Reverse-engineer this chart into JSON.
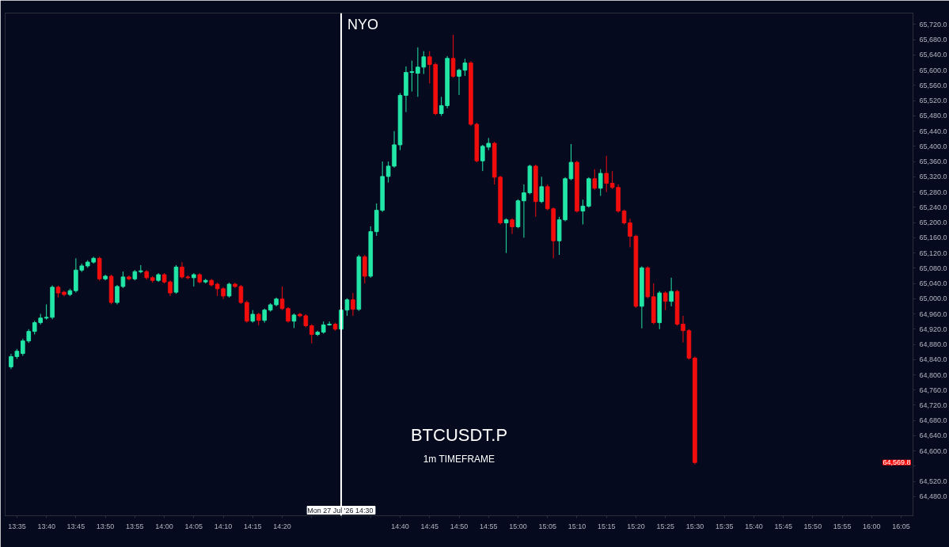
{
  "chart_data": {
    "type": "candlestick",
    "title": "BTCUSDT.P",
    "subtitle": "1m TIMEFRAME",
    "x": [
      "2026-07-27T13:34",
      "2026-07-27T13:35",
      "2026-07-27T13:36",
      "2026-07-27T13:37",
      "2026-07-27T13:38",
      "2026-07-27T13:39",
      "2026-07-27T13:40",
      "2026-07-27T13:41",
      "2026-07-27T13:42",
      "2026-07-27T13:43",
      "2026-07-27T13:44",
      "2026-07-27T13:45",
      "2026-07-27T13:46",
      "2026-07-27T13:47",
      "2026-07-27T13:48",
      "2026-07-27T13:49",
      "2026-07-27T13:50",
      "2026-07-27T13:51",
      "2026-07-27T13:52",
      "2026-07-27T13:53",
      "2026-07-27T13:54",
      "2026-07-27T13:55",
      "2026-07-27T13:56",
      "2026-07-27T13:57",
      "2026-07-27T13:58",
      "2026-07-27T13:59",
      "2026-07-27T14:00",
      "2026-07-27T14:01",
      "2026-07-27T14:02",
      "2026-07-27T14:03",
      "2026-07-27T14:04",
      "2026-07-27T14:05",
      "2026-07-27T14:06",
      "2026-07-27T14:07",
      "2026-07-27T14:08",
      "2026-07-27T14:09",
      "2026-07-27T14:10",
      "2026-07-27T14:11",
      "2026-07-27T14:12",
      "2026-07-27T14:13",
      "2026-07-27T14:14",
      "2026-07-27T14:15",
      "2026-07-27T14:16",
      "2026-07-27T14:17",
      "2026-07-27T14:18",
      "2026-07-27T14:19",
      "2026-07-27T14:20",
      "2026-07-27T14:21",
      "2026-07-27T14:22",
      "2026-07-27T14:23",
      "2026-07-27T14:24",
      "2026-07-27T14:25",
      "2026-07-27T14:26",
      "2026-07-27T14:27",
      "2026-07-27T14:28",
      "2026-07-27T14:29",
      "2026-07-27T14:30",
      "2026-07-27T14:31",
      "2026-07-27T14:32",
      "2026-07-27T14:33",
      "2026-07-27T14:34",
      "2026-07-27T14:35",
      "2026-07-27T14:36",
      "2026-07-27T14:37",
      "2026-07-27T14:38",
      "2026-07-27T14:39",
      "2026-07-27T14:40",
      "2026-07-27T14:41",
      "2026-07-27T14:42",
      "2026-07-27T14:43",
      "2026-07-27T14:44",
      "2026-07-27T14:45",
      "2026-07-27T14:46",
      "2026-07-27T14:47",
      "2026-07-27T14:48",
      "2026-07-27T14:49",
      "2026-07-27T14:50",
      "2026-07-27T14:51",
      "2026-07-27T14:52",
      "2026-07-27T14:53",
      "2026-07-27T14:54",
      "2026-07-27T14:55",
      "2026-07-27T14:56",
      "2026-07-27T14:57",
      "2026-07-27T14:58",
      "2026-07-27T14:59",
      "2026-07-27T15:00",
      "2026-07-27T15:01",
      "2026-07-27T15:02",
      "2026-07-27T15:03",
      "2026-07-27T15:04",
      "2026-07-27T15:05",
      "2026-07-27T15:06",
      "2026-07-27T15:07",
      "2026-07-27T15:08",
      "2026-07-27T15:09",
      "2026-07-27T15:10",
      "2026-07-27T15:11",
      "2026-07-27T15:12",
      "2026-07-27T15:13",
      "2026-07-27T15:14",
      "2026-07-27T15:15",
      "2026-07-27T15:16",
      "2026-07-27T15:17",
      "2026-07-27T15:18",
      "2026-07-27T15:19",
      "2026-07-27T15:20",
      "2026-07-27T15:21",
      "2026-07-27T15:22",
      "2026-07-27T15:23",
      "2026-07-27T15:24",
      "2026-07-27T15:25",
      "2026-07-27T15:26",
      "2026-07-27T15:27",
      "2026-07-27T15:28",
      "2026-07-27T15:29",
      "2026-07-27T15:30"
    ],
    "ohlc": [
      [
        64821,
        64855,
        64815,
        64848
      ],
      [
        64848,
        64868,
        64842,
        64862
      ],
      [
        64856,
        64895,
        64850,
        64889
      ],
      [
        64889,
        64920,
        64884,
        64914
      ],
      [
        64914,
        64942,
        64906,
        64937
      ],
      [
        64937,
        64960,
        64932,
        64949
      ],
      [
        64949,
        64985,
        64945,
        64951
      ],
      [
        64951,
        65035,
        64946,
        65030
      ],
      [
        65030,
        65034,
        65003,
        65015
      ],
      [
        65017,
        65021,
        65006,
        65011
      ],
      [
        65011,
        65026,
        65007,
        65021
      ],
      [
        65021,
        65106,
        65016,
        65075
      ],
      [
        65075,
        65092,
        65070,
        65086
      ],
      [
        65086,
        65101,
        65081,
        65096
      ],
      [
        65096,
        65110,
        65092,
        65106
      ],
      [
        65106,
        65110,
        65047,
        65052
      ],
      [
        65052,
        65063,
        65048,
        65059
      ],
      [
        65059,
        65063,
        64985,
        64990
      ],
      [
        64990,
        65036,
        64985,
        65032
      ],
      [
        65032,
        65071,
        65028,
        65057
      ],
      [
        65057,
        65061,
        65048,
        65052
      ],
      [
        65052,
        65075,
        65048,
        65071
      ],
      [
        65071,
        65088,
        65067,
        65073
      ],
      [
        65071,
        65075,
        65050,
        65055
      ],
      [
        65055,
        65059,
        65042,
        65048
      ],
      [
        65048,
        65067,
        65044,
        65063
      ],
      [
        65063,
        65067,
        65040,
        65044
      ],
      [
        65044,
        65048,
        65007,
        65015
      ],
      [
        65017,
        65088,
        65013,
        65083
      ],
      [
        65083,
        65096,
        65053,
        65057
      ],
      [
        65057,
        65061,
        65051,
        65055
      ],
      [
        65055,
        65067,
        65032,
        65063
      ],
      [
        65063,
        65067,
        65040,
        65044
      ],
      [
        65044,
        65052,
        65040,
        65048
      ],
      [
        65048,
        65052,
        65032,
        65036
      ],
      [
        65038,
        65042,
        65007,
        65026
      ],
      [
        65026,
        65030,
        64999,
        65007
      ],
      [
        65007,
        65042,
        65003,
        65038
      ],
      [
        65038,
        65042,
        65028,
        65032
      ],
      [
        65032,
        65036,
        64986,
        64990
      ],
      [
        64990,
        64995,
        64937,
        64941
      ],
      [
        64941,
        64970,
        64937,
        64959
      ],
      [
        64959,
        64963,
        64930,
        64943
      ],
      [
        64943,
        64974,
        64937,
        64970
      ],
      [
        64970,
        64988,
        64966,
        64984
      ],
      [
        64984,
        65003,
        64980,
        64999
      ],
      [
        64999,
        65032,
        64970,
        64974
      ],
      [
        64974,
        64978,
        64937,
        64941
      ],
      [
        64941,
        64961,
        64923,
        64957
      ],
      [
        64959,
        64963,
        64951,
        64955
      ],
      [
        64955,
        64959,
        64925,
        64929
      ],
      [
        64929,
        64933,
        64883,
        64906
      ],
      [
        64906,
        64916,
        64902,
        64912
      ],
      [
        64912,
        64940,
        64908,
        64931
      ],
      [
        64931,
        64940,
        64929,
        64933
      ],
      [
        64933,
        64937,
        64916,
        64920
      ],
      [
        64920,
        64974,
        64916,
        64970
      ],
      [
        64970,
        65001,
        64955,
        64997
      ],
      [
        64997,
        65015,
        64955,
        64972
      ],
      [
        64972,
        65115,
        64968,
        65110
      ],
      [
        65110,
        65115,
        65040,
        65059
      ],
      [
        65059,
        65190,
        65055,
        65176
      ],
      [
        65176,
        65250,
        65165,
        65232
      ],
      [
        65232,
        65360,
        65228,
        65321
      ],
      [
        65321,
        65360,
        65305,
        65348
      ],
      [
        65348,
        65440,
        65344,
        65404
      ],
      [
        65404,
        65540,
        65390,
        65534
      ],
      [
        65534,
        65610,
        65490,
        65594
      ],
      [
        65594,
        65625,
        65544,
        65596
      ],
      [
        65592,
        65660,
        65530,
        65608
      ],
      [
        65608,
        65650,
        65590,
        65635
      ],
      [
        65635,
        65650,
        65565,
        65615
      ],
      [
        65615,
        65620,
        65482,
        65486
      ],
      [
        65486,
        65530,
        65480,
        65507
      ],
      [
        65507,
        65637,
        65500,
        65631
      ],
      [
        65631,
        65693,
        65580,
        65584
      ],
      [
        65584,
        65604,
        65535,
        65600
      ],
      [
        65600,
        65630,
        65585,
        65619
      ],
      [
        65619,
        65624,
        65454,
        65458
      ],
      [
        65458,
        65462,
        65358,
        65362
      ],
      [
        65362,
        65404,
        65335,
        65400
      ],
      [
        65398,
        65422,
        65390,
        65408
      ],
      [
        65408,
        65412,
        65300,
        65319
      ],
      [
        65319,
        65323,
        65195,
        65199
      ],
      [
        65199,
        65211,
        65120,
        65207
      ],
      [
        65207,
        65211,
        65170,
        65189
      ],
      [
        65189,
        65261,
        65185,
        65257
      ],
      [
        65257,
        65300,
        65160,
        65278
      ],
      [
        65278,
        65352,
        65274,
        65348
      ],
      [
        65348,
        65352,
        65215,
        65255
      ],
      [
        65255,
        65320,
        65251,
        65294
      ],
      [
        65294,
        65300,
        65232,
        65236
      ],
      [
        65236,
        65240,
        65106,
        65152
      ],
      [
        65152,
        65215,
        65115,
        65207
      ],
      [
        65207,
        65319,
        65203,
        65315
      ],
      [
        65315,
        65406,
        65311,
        65358
      ],
      [
        65358,
        65362,
        65226,
        65230
      ],
      [
        65230,
        65260,
        65195,
        65243
      ],
      [
        65243,
        65319,
        65239,
        65315
      ],
      [
        65315,
        65340,
        65286,
        65290
      ],
      [
        65290,
        65340,
        65270,
        65329
      ],
      [
        65329,
        65375,
        65280,
        65303
      ],
      [
        65303,
        65335,
        65288,
        65292
      ],
      [
        65292,
        65300,
        65226,
        65230
      ],
      [
        65230,
        65234,
        65195,
        65199
      ],
      [
        65199,
        65210,
        65135,
        65164
      ],
      [
        65164,
        65168,
        64976,
        64980
      ],
      [
        64980,
        65085,
        64922,
        65081
      ],
      [
        65081,
        65085,
        65001,
        65005
      ],
      [
        65005,
        65040,
        64933,
        64937
      ],
      [
        64937,
        65020,
        64920,
        65015
      ],
      [
        65015,
        65019,
        64970,
        64993
      ],
      [
        64993,
        65055,
        64980,
        65019
      ],
      [
        65019,
        65023,
        64929,
        64933
      ],
      [
        64933,
        64955,
        64885,
        64916
      ],
      [
        64916,
        64920,
        64840,
        64844
      ],
      [
        64844,
        64848,
        64565,
        64569.8
      ]
    ],
    "xlim": [
      "2026-07-27T13:33",
      "2026-07-27T16:07"
    ],
    "xticks": [
      {
        "value": "2026-07-27T13:35",
        "label": "13:35"
      },
      {
        "value": "2026-07-27T13:40",
        "label": "13:40"
      },
      {
        "value": "2026-07-27T13:45",
        "label": "13:45"
      },
      {
        "value": "2026-07-27T13:50",
        "label": "13:50"
      },
      {
        "value": "2026-07-27T13:55",
        "label": "13:55"
      },
      {
        "value": "2026-07-27T14:00",
        "label": "14:00"
      },
      {
        "value": "2026-07-27T14:05",
        "label": "14:05"
      },
      {
        "value": "2026-07-27T14:10",
        "label": "14:10"
      },
      {
        "value": "2026-07-27T14:15",
        "label": "14:15"
      },
      {
        "value": "2026-07-27T14:20",
        "label": "14:20"
      },
      {
        "value": "2026-07-27T14:25",
        "label": null
      },
      {
        "value": "2026-07-27T14:30",
        "label": null
      },
      {
        "value": "2026-07-27T14:35",
        "label": null
      },
      {
        "value": "2026-07-27T14:40",
        "label": "14:40"
      },
      {
        "value": "2026-07-27T14:45",
        "label": "14:45"
      },
      {
        "value": "2026-07-27T14:50",
        "label": "14:50"
      },
      {
        "value": "2026-07-27T14:55",
        "label": "14:55"
      },
      {
        "value": "2026-07-27T15:00",
        "label": "15:00"
      },
      {
        "value": "2026-07-27T15:05",
        "label": "15:05"
      },
      {
        "value": "2026-07-27T15:10",
        "label": "15:10"
      },
      {
        "value": "2026-07-27T15:15",
        "label": "15:15"
      },
      {
        "value": "2026-07-27T15:20",
        "label": "15:20"
      },
      {
        "value": "2026-07-27T15:25",
        "label": "15:25"
      },
      {
        "value": "2026-07-27T15:30",
        "label": "15:30"
      },
      {
        "value": "2026-07-27T15:35",
        "label": "15:35"
      },
      {
        "value": "2026-07-27T15:40",
        "label": "15:40"
      },
      {
        "value": "2026-07-27T15:45",
        "label": "15:45"
      },
      {
        "value": "2026-07-27T15:50",
        "label": "15:50"
      },
      {
        "value": "2026-07-27T15:55",
        "label": "15:55"
      },
      {
        "value": "2026-07-27T16:00",
        "label": "16:00"
      },
      {
        "value": "2026-07-27T16:05",
        "label": "16:05"
      }
    ],
    "ylim": [
      64430,
      65750
    ],
    "yticks": [
      {
        "value": 64480,
        "label": "64,480.0"
      },
      {
        "value": 64520,
        "label": "64,520.0"
      },
      {
        "value": 64560,
        "label": null
      },
      {
        "value": 64600,
        "label": "64,600.0"
      },
      {
        "value": 64640,
        "label": "64,640.0"
      },
      {
        "value": 64680,
        "label": "64,680.0"
      },
      {
        "value": 64720,
        "label": "64,720.0"
      },
      {
        "value": 64760,
        "label": "64,760.0"
      },
      {
        "value": 64800,
        "label": "64,800.0"
      },
      {
        "value": 64840,
        "label": "64,840.0"
      },
      {
        "value": 64880,
        "label": "64,880.0"
      },
      {
        "value": 64920,
        "label": "64,920.0"
      },
      {
        "value": 64960,
        "label": "64,960.0"
      },
      {
        "value": 65000,
        "label": "65,000.0"
      },
      {
        "value": 65040,
        "label": "65,040.0"
      },
      {
        "value": 65080,
        "label": "65,080.0"
      },
      {
        "value": 65120,
        "label": "65,120.0"
      },
      {
        "value": 65160,
        "label": "65,160.0"
      },
      {
        "value": 65200,
        "label": "65,200.0"
      },
      {
        "value": 65240,
        "label": "65,240.0"
      },
      {
        "value": 65280,
        "label": "65,280.0"
      },
      {
        "value": 65320,
        "label": "65,320.0"
      },
      {
        "value": 65360,
        "label": "65,360.0"
      },
      {
        "value": 65400,
        "label": "65,400.0"
      },
      {
        "value": 65440,
        "label": "65,440.0"
      },
      {
        "value": 65480,
        "label": "65,480.0"
      },
      {
        "value": 65520,
        "label": "65,520.0"
      },
      {
        "value": 65560,
        "label": "65,560.0"
      },
      {
        "value": 65600,
        "label": "65,600.0"
      },
      {
        "value": 65640,
        "label": "65,640.0"
      },
      {
        "value": 65680,
        "label": "65,680.0"
      },
      {
        "value": 65720,
        "label": "65,720.0"
      }
    ],
    "grid": false,
    "ref_lines": [
      {
        "axis": "x",
        "value": "2026-07-27T14:30",
        "label": "NYO",
        "color": "#ffffff"
      }
    ],
    "annotations": [
      {
        "text": "Mon 27 Jul '26  14:30",
        "x": "2026-07-27T14:30"
      },
      "64,569.8"
    ]
  }
}
